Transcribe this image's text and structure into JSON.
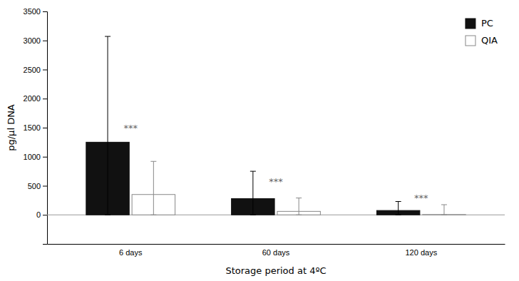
{
  "chart_data": {
    "type": "bar",
    "categories": [
      "6 days",
      "60 days",
      "120 days"
    ],
    "series": [
      {
        "name": "PC",
        "color": "#111111",
        "values": [
          1250,
          280,
          75
        ],
        "error_upper": [
          1820,
          470,
          155
        ],
        "error_lower": [
          1250,
          280,
          75
        ]
      },
      {
        "name": "QIA",
        "color": "#ffffff",
        "values": [
          350,
          60,
          5
        ],
        "error_upper": [
          570,
          230,
          170
        ],
        "error_lower": [
          350,
          60,
          5
        ]
      }
    ],
    "xlabel": "Storage period at 4ºC",
    "ylabel": "pg/µl DNA",
    "ylim": [
      -500,
      3500
    ],
    "yticks": [
      0,
      500,
      1000,
      1500,
      2000,
      2500,
      3000,
      3500
    ],
    "annotations": [
      {
        "text": "***",
        "x": "6 days",
        "y": 1420
      },
      {
        "text": "***",
        "x": "60 days",
        "y": 490
      },
      {
        "text": "***",
        "x": "120 days",
        "y": 210
      }
    ],
    "legend": "upper right",
    "grid": false
  }
}
